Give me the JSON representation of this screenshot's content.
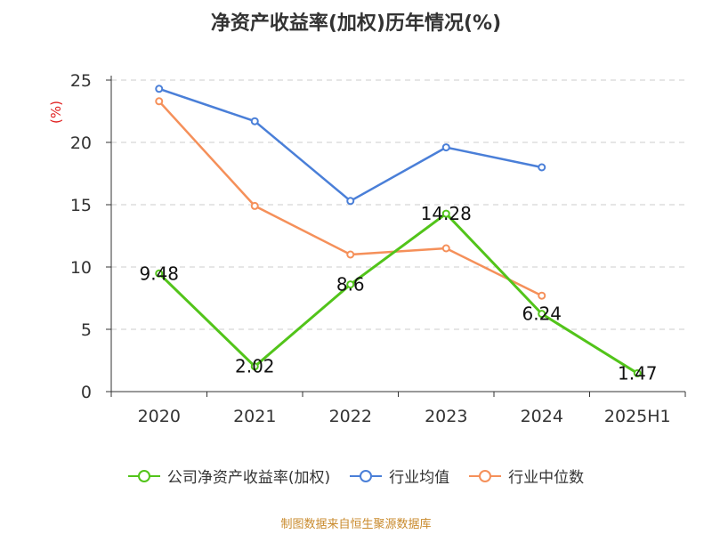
{
  "title": "净资产收益率(加权)历年情况(%)",
  "source": "制图数据来自恒生聚源数据库",
  "chart_data": {
    "type": "line",
    "title": "净资产收益率(加权)历年情况(%)",
    "ylabel": "(%)",
    "categories": [
      "2020",
      "2021",
      "2022",
      "2023",
      "2024",
      "2025H1"
    ],
    "ylim": [
      0,
      25
    ],
    "yticks": [
      "0",
      "5",
      "10",
      "15",
      "20",
      "25"
    ],
    "grid": true,
    "legend_position": "bottom",
    "series": [
      {
        "name": "公司净资产收益率(加权)",
        "color": "#52c41a",
        "values": [
          9.48,
          2.02,
          8.6,
          14.28,
          6.24,
          1.47
        ],
        "labels": [
          "9.48",
          "2.02",
          "8.6",
          "14.28",
          "6.24",
          "1.47"
        ]
      },
      {
        "name": "行业均值",
        "color": "#4a7fd8",
        "values": [
          24.3,
          21.7,
          15.3,
          19.6,
          18.0,
          null
        ]
      },
      {
        "name": "行业中位数",
        "color": "#f5905a",
        "values": [
          23.3,
          14.9,
          11.0,
          11.5,
          7.7,
          null
        ]
      }
    ]
  }
}
